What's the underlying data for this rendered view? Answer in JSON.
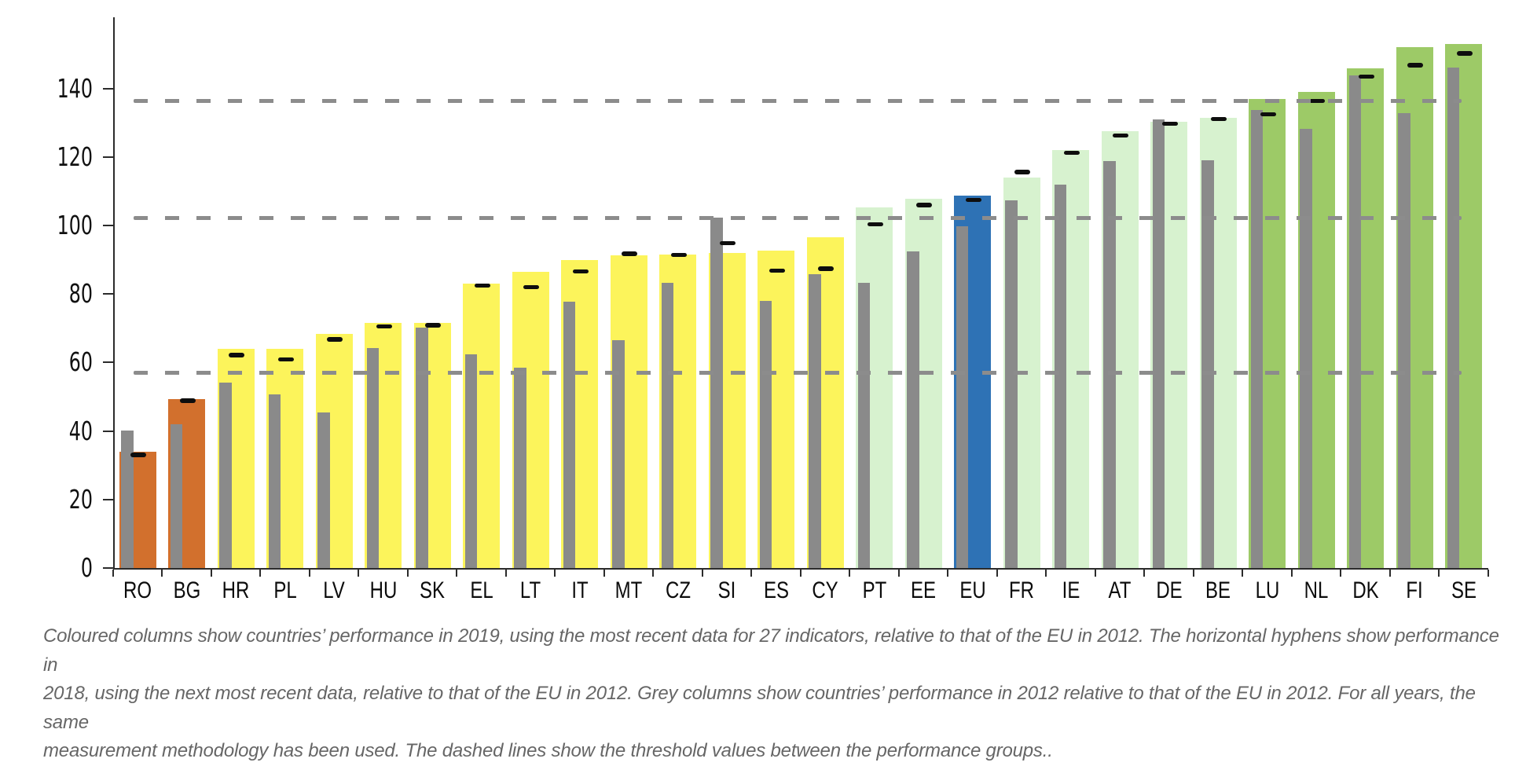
{
  "chart_data": {
    "type": "bar",
    "title": "",
    "xlabel": "",
    "ylabel": "",
    "categories": [
      "RO",
      "BG",
      "HR",
      "PL",
      "LV",
      "HU",
      "SK",
      "EL",
      "LT",
      "IT",
      "MT",
      "CZ",
      "SI",
      "ES",
      "CY",
      "PT",
      "EE",
      "EU",
      "FR",
      "IE",
      "AT",
      "DE",
      "BE",
      "LU",
      "NL",
      "DK",
      "FI",
      "SE"
    ],
    "series": [
      {
        "name": "Performance in 2019 (coloured columns)",
        "values": [
          34.0,
          49.4,
          64.1,
          64.1,
          68.4,
          71.6,
          71.6,
          83.1,
          86.4,
          90.0,
          91.2,
          91.4,
          92.0,
          92.6,
          96.5,
          105.3,
          107.9,
          108.8,
          114.1,
          122.1,
          127.5,
          130.2,
          131.4,
          137.0,
          138.9,
          145.9,
          152.0,
          153.0
        ]
      },
      {
        "name": "Performance in 2018 (horizontal hyphens)",
        "values": [
          33.0,
          48.8,
          62.2,
          60.9,
          66.8,
          70.5,
          70.9,
          82.4,
          82.0,
          86.6,
          91.7,
          91.4,
          94.8,
          86.8,
          87.4,
          100.3,
          106.0,
          107.5,
          115.6,
          121.2,
          126.3,
          129.7,
          131.1,
          132.4,
          136.4,
          143.5,
          146.8,
          150.2
        ]
      },
      {
        "name": "Performance in 2012 (grey columns)",
        "values": [
          40.2,
          42.0,
          54.1,
          50.8,
          45.5,
          64.3,
          70.1,
          62.3,
          58.4,
          77.8,
          66.6,
          83.2,
          102.2,
          77.9,
          85.8,
          83.2,
          92.5,
          99.8,
          107.4,
          112.0,
          118.8,
          131.0,
          119.0,
          133.7,
          128.1,
          143.9,
          132.7,
          146.1
        ]
      }
    ],
    "performance_groups": [
      "modest",
      "modest",
      "moderate",
      "moderate",
      "moderate",
      "moderate",
      "moderate",
      "moderate",
      "moderate",
      "moderate",
      "moderate",
      "moderate",
      "moderate",
      "moderate",
      "moderate",
      "strong",
      "strong",
      "eu",
      "strong",
      "strong",
      "strong",
      "strong",
      "strong",
      "leader",
      "leader",
      "leader",
      "leader",
      "leader"
    ],
    "group_colors": {
      "modest": "#D2702D",
      "moderate": "#FCF45B",
      "strong": "#D7F2CF",
      "eu": "#2E72B5",
      "leader": "#9DCA67"
    },
    "grey_column_color": "#8A8A8A",
    "hyphen_color": "#0E0E0E",
    "threshold_line_color": "#8C8C8C",
    "thresholds": [
      57.0,
      102.2,
      136.3
    ],
    "yticks": [
      0,
      20,
      40,
      60,
      80,
      100,
      120,
      140
    ],
    "ylim": [
      0,
      158
    ],
    "grid": false,
    "legend": "none"
  },
  "caption": {
    "lines": [
      "Coloured columns show countries’ performance in 2019, using the most recent data for 27 indicators, relative to that of the EU in 2012. The horizontal hyphens show performance in",
      "2018, using the next most recent data, relative to that of the EU in 2012. Grey columns show countries’ performance in 2012 relative to that of the EU in 2012. For all years, the same",
      "measurement methodology has been used. The dashed lines show the threshold values between the performance groups.."
    ]
  }
}
